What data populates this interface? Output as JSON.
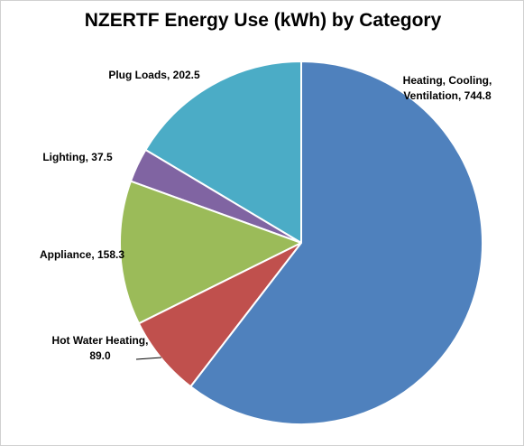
{
  "chart_data": {
    "type": "pie",
    "title": "NZERTF Energy Use (kWh) by Category",
    "values": [
      744.8,
      89.0,
      158.3,
      37.5,
      202.5
    ],
    "value_labels": [
      "Heating, Cooling, Ventilation, 744.8",
      "Hot Water Heating, 89.0",
      "Appliance, 158.3",
      "Lighting, 37.5",
      "Plug Loads, 202.5"
    ],
    "colors": [
      "#4f81bd",
      "#c0504d",
      "#9bbb59",
      "#8064a2",
      "#4bacc6"
    ]
  }
}
